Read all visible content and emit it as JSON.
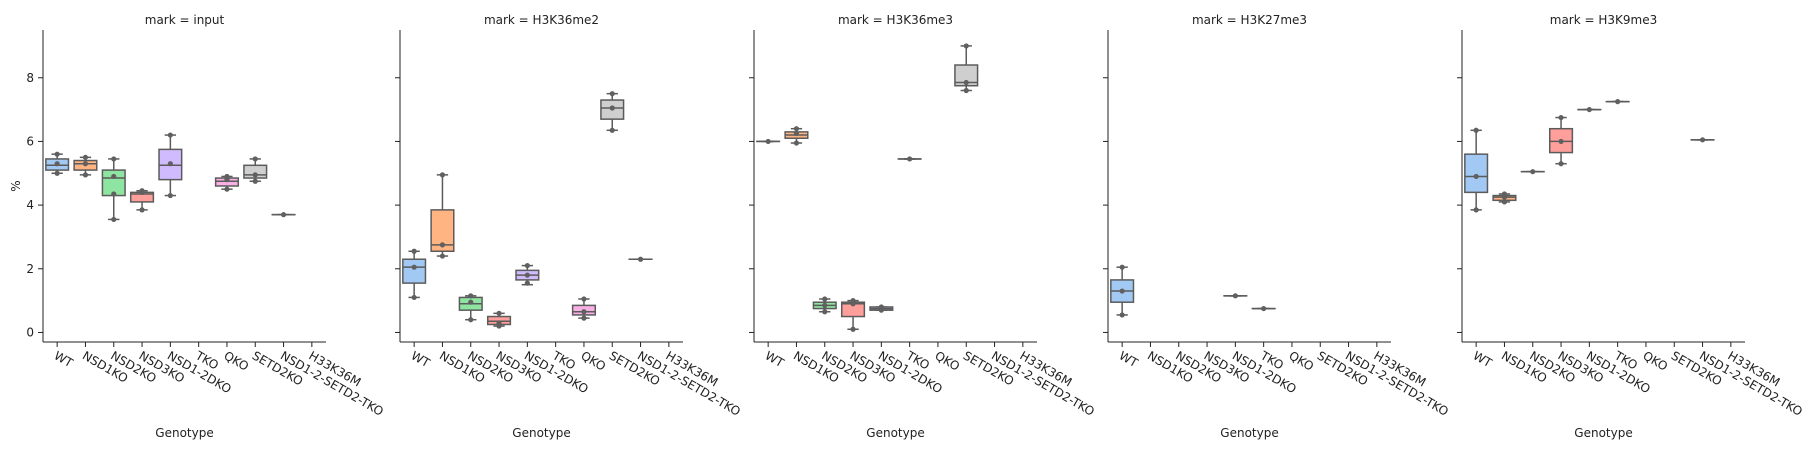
{
  "chart_data": {
    "type": "box",
    "figure_type": "faceted box plot with strip points",
    "xlabel": "Genotype",
    "ylabel": "%",
    "ylim": [
      -0.3,
      9.5
    ],
    "yticks": [
      0,
      2,
      4,
      6,
      8
    ],
    "shared_y": true,
    "grid": false,
    "legend": "none",
    "categories": [
      "WT",
      "NSD1KO",
      "NSD2KO",
      "NSD3KO",
      "NSD1-2DKO",
      "TKO",
      "QKO",
      "SETD2KO",
      "NSD1-2-SETD2-TKO",
      "H33K36M"
    ],
    "colors": [
      "#a1c9f4",
      "#ffb482",
      "#8de5a1",
      "#ff9f9b",
      "#d0bbff",
      "#debb9b",
      "#fab0e4",
      "#cfcfcf",
      "#fffea3",
      "#b9f2f0"
    ],
    "panels": [
      {
        "title": "mark = input",
        "boxes": [
          {
            "category": "WT",
            "q1": 5.1,
            "median": 5.25,
            "q3": 5.45,
            "whislo": 5.0,
            "whishi": 5.6,
            "points": [
              5.0,
              5.3,
              5.6
            ]
          },
          {
            "category": "NSD1KO",
            "q1": 5.1,
            "median": 5.3,
            "q3": 5.4,
            "whislo": 4.95,
            "whishi": 5.5,
            "points": [
              4.95,
              5.3,
              5.5
            ]
          },
          {
            "category": "NSD2KO",
            "q1": 4.3,
            "median": 4.85,
            "q3": 5.1,
            "whislo": 3.55,
            "whishi": 5.45,
            "points": [
              3.55,
              4.35,
              4.9,
              5.45
            ]
          },
          {
            "category": "NSD3KO",
            "q1": 4.1,
            "median": 4.35,
            "q3": 4.4,
            "whislo": 3.85,
            "whishi": 4.45,
            "points": [
              3.85,
              4.4,
              4.45
            ]
          },
          {
            "category": "NSD1-2DKO",
            "q1": 4.8,
            "median": 5.25,
            "q3": 5.75,
            "whislo": 4.3,
            "whishi": 6.2,
            "points": [
              4.3,
              5.3,
              6.2
            ]
          },
          {
            "category": "QKO",
            "q1": 4.6,
            "median": 4.75,
            "q3": 4.85,
            "whislo": 4.5,
            "whishi": 4.9,
            "points": [
              4.5,
              4.8,
              4.9
            ]
          },
          {
            "category": "SETD2KO",
            "q1": 4.85,
            "median": 4.95,
            "q3": 5.25,
            "whislo": 4.75,
            "whishi": 5.45,
            "points": [
              4.75,
              4.95,
              5.45
            ]
          },
          {
            "category": "NSD1-2-SETD2-TKO",
            "q1": 3.7,
            "median": 3.7,
            "q3": 3.7,
            "whislo": 3.7,
            "whishi": 3.7,
            "points": [
              3.7
            ]
          }
        ]
      },
      {
        "title": "mark = H3K36me2",
        "boxes": [
          {
            "category": "WT",
            "q1": 1.55,
            "median": 2.05,
            "q3": 2.3,
            "whislo": 1.1,
            "whishi": 2.55,
            "points": [
              1.1,
              2.05,
              2.55
            ]
          },
          {
            "category": "NSD1KO",
            "q1": 2.55,
            "median": 2.75,
            "q3": 3.85,
            "whislo": 2.4,
            "whishi": 4.95,
            "points": [
              2.4,
              2.75,
              4.95
            ]
          },
          {
            "category": "NSD2KO",
            "q1": 0.7,
            "median": 0.9,
            "q3": 1.1,
            "whislo": 0.4,
            "whishi": 1.15,
            "points": [
              0.4,
              0.95,
              1.15
            ]
          },
          {
            "category": "NSD3KO",
            "q1": 0.25,
            "median": 0.35,
            "q3": 0.5,
            "whislo": 0.2,
            "whishi": 0.6,
            "points": [
              0.2,
              0.3,
              0.6
            ]
          },
          {
            "category": "NSD1-2DKO",
            "q1": 1.65,
            "median": 1.8,
            "q3": 1.95,
            "whislo": 1.5,
            "whishi": 2.1,
            "points": [
              1.55,
              1.8,
              2.1
            ]
          },
          {
            "category": "QKO",
            "q1": 0.55,
            "median": 0.65,
            "q3": 0.85,
            "whislo": 0.45,
            "whishi": 1.05,
            "points": [
              0.45,
              0.65,
              1.05
            ]
          },
          {
            "category": "SETD2KO",
            "q1": 6.7,
            "median": 7.05,
            "q3": 7.3,
            "whislo": 6.35,
            "whishi": 7.5,
            "points": [
              6.35,
              7.05,
              7.5
            ]
          },
          {
            "category": "NSD1-2-SETD2-TKO",
            "q1": 2.3,
            "median": 2.3,
            "q3": 2.3,
            "whislo": 2.3,
            "whishi": 2.3,
            "points": [
              2.3
            ]
          }
        ]
      },
      {
        "title": "mark = H3K36me3",
        "boxes": [
          {
            "category": "WT",
            "q1": 6.0,
            "median": 6.0,
            "q3": 6.0,
            "whislo": 6.0,
            "whishi": 6.0,
            "points": [
              6.0
            ]
          },
          {
            "category": "NSD1KO",
            "q1": 6.1,
            "median": 6.2,
            "q3": 6.3,
            "whislo": 5.95,
            "whishi": 6.4,
            "points": [
              5.95,
              6.25,
              6.4
            ]
          },
          {
            "category": "NSD2KO",
            "q1": 0.75,
            "median": 0.85,
            "q3": 0.95,
            "whislo": 0.65,
            "whishi": 1.05,
            "points": [
              0.65,
              0.85,
              1.05
            ]
          },
          {
            "category": "NSD3KO",
            "q1": 0.5,
            "median": 0.9,
            "q3": 0.95,
            "whislo": 0.1,
            "whishi": 1.0,
            "points": [
              0.1,
              0.9,
              1.0
            ]
          },
          {
            "category": "NSD1-2DKO",
            "q1": 0.7,
            "median": 0.75,
            "q3": 0.8,
            "whislo": 0.7,
            "whishi": 0.8,
            "points": [
              0.7,
              0.75,
              0.8
            ]
          },
          {
            "category": "TKO",
            "q1": 5.45,
            "median": 5.45,
            "q3": 5.45,
            "whislo": 5.45,
            "whishi": 5.45,
            "points": [
              5.45
            ]
          },
          {
            "category": "SETD2KO",
            "q1": 7.75,
            "median": 7.85,
            "q3": 8.4,
            "whislo": 7.6,
            "whishi": 9.0,
            "points": [
              7.6,
              7.85,
              9.0
            ]
          }
        ]
      },
      {
        "title": "mark = H3K27me3",
        "boxes": [
          {
            "category": "WT",
            "q1": 0.95,
            "median": 1.3,
            "q3": 1.65,
            "whislo": 0.55,
            "whishi": 2.05,
            "points": [
              0.55,
              1.3,
              2.05
            ]
          },
          {
            "category": "NSD1-2DKO",
            "q1": 1.15,
            "median": 1.15,
            "q3": 1.15,
            "whislo": 1.15,
            "whishi": 1.15,
            "points": [
              1.15
            ]
          },
          {
            "category": "TKO",
            "q1": 0.75,
            "median": 0.75,
            "q3": 0.75,
            "whislo": 0.75,
            "whishi": 0.75,
            "points": [
              0.75
            ]
          }
        ]
      },
      {
        "title": "mark = H3K9me3",
        "boxes": [
          {
            "category": "WT",
            "q1": 4.4,
            "median": 4.9,
            "q3": 5.6,
            "whislo": 3.85,
            "whishi": 6.35,
            "points": [
              3.85,
              4.9,
              6.35
            ]
          },
          {
            "category": "NSD1KO",
            "q1": 4.15,
            "median": 4.25,
            "q3": 4.3,
            "whislo": 4.1,
            "whishi": 4.35,
            "points": [
              4.1,
              4.25,
              4.35
            ]
          },
          {
            "category": "NSD2KO",
            "q1": 5.05,
            "median": 5.05,
            "q3": 5.05,
            "whislo": 5.05,
            "whishi": 5.05,
            "points": [
              5.05
            ]
          },
          {
            "category": "NSD3KO",
            "q1": 5.65,
            "median": 6.0,
            "q3": 6.4,
            "whislo": 5.3,
            "whishi": 6.75,
            "points": [
              5.3,
              6.0,
              6.75
            ]
          },
          {
            "category": "NSD1-2DKO",
            "q1": 7.0,
            "median": 7.0,
            "q3": 7.0,
            "whislo": 7.0,
            "whishi": 7.0,
            "points": [
              7.0
            ]
          },
          {
            "category": "TKO",
            "q1": 7.25,
            "median": 7.25,
            "q3": 7.25,
            "whislo": 7.25,
            "whishi": 7.25,
            "points": [
              7.25
            ]
          },
          {
            "category": "NSD1-2-SETD2-TKO",
            "q1": 6.05,
            "median": 6.05,
            "q3": 6.05,
            "whislo": 6.05,
            "whishi": 6.05,
            "points": [
              6.05
            ]
          }
        ]
      }
    ]
  }
}
